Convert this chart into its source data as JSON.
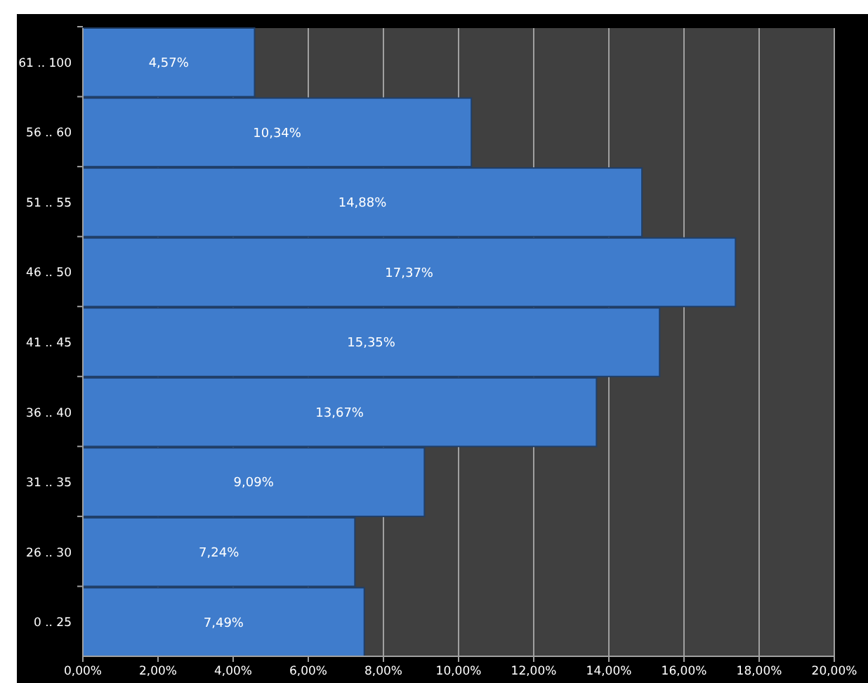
{
  "chart_data": {
    "type": "bar",
    "orientation": "horizontal",
    "categories": [
      "61 .. 100",
      "56 .. 60",
      "51 .. 55",
      "46 .. 50",
      "41 .. 45",
      "36 .. 40",
      "31 .. 35",
      "26 .. 30",
      "0 .. 25"
    ],
    "values": [
      4.57,
      10.34,
      14.88,
      17.37,
      15.35,
      13.67,
      9.09,
      7.24,
      7.49
    ],
    "value_labels": [
      "4,57%",
      "10,34%",
      "14,88%",
      "17,37%",
      "15,35%",
      "13,67%",
      "9,09%",
      "7,24%",
      "7,49%"
    ],
    "color": "#3f7ccc",
    "xlim": [
      0,
      20
    ],
    "xticks": [
      {
        "value": 0,
        "label": "0,00%"
      },
      {
        "value": 2,
        "label": "2,00%"
      },
      {
        "value": 4,
        "label": "4,00%"
      },
      {
        "value": 6,
        "label": "6,00%"
      },
      {
        "value": 8,
        "label": "8,00%"
      },
      {
        "value": 10,
        "label": "10,00%"
      },
      {
        "value": 12,
        "label": "12,00%"
      },
      {
        "value": 14,
        "label": "14,00%"
      },
      {
        "value": 16,
        "label": "16,00%"
      },
      {
        "value": 18,
        "label": "18,00%"
      },
      {
        "value": 20,
        "label": "20,00%"
      }
    ],
    "grid": "x"
  }
}
